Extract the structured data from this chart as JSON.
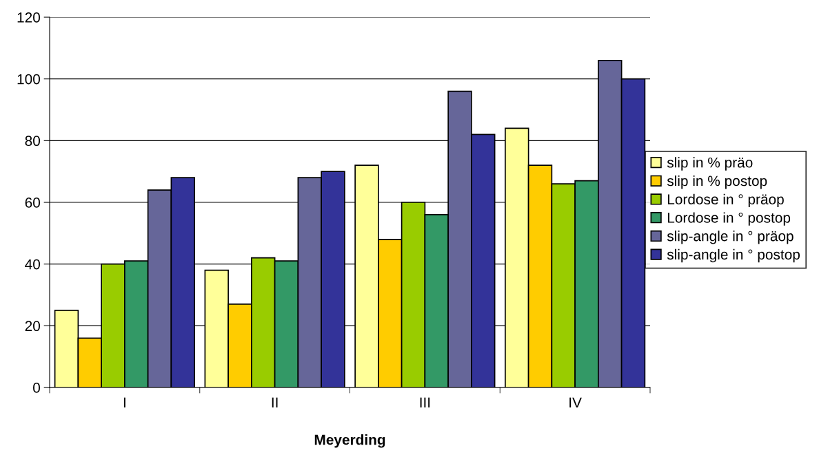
{
  "chart_data": {
    "type": "bar",
    "xlabel": "Meyerding",
    "categories": [
      "I",
      "II",
      "III",
      "IV"
    ],
    "series": [
      {
        "name": "slip in % präo",
        "color": "#ffff99",
        "values": [
          25,
          38,
          72,
          84
        ]
      },
      {
        "name": "slip in % postop",
        "color": "#ffcc00",
        "values": [
          16,
          27,
          48,
          72
        ]
      },
      {
        "name": "Lordose in ° präop",
        "color": "#99cc00",
        "values": [
          40,
          42,
          60,
          66
        ]
      },
      {
        "name": "Lordose in ° postop",
        "color": "#339966",
        "values": [
          41,
          41,
          56,
          67
        ]
      },
      {
        "name": "slip-angle in ° präop",
        "color": "#666699",
        "values": [
          64,
          68,
          96,
          106
        ]
      },
      {
        "name": "slip-angle in ° postop",
        "color": "#333399",
        "values": [
          68,
          70,
          82,
          100
        ]
      }
    ],
    "ylim": [
      0,
      120
    ],
    "yticks": [
      0,
      20,
      40,
      60,
      80,
      100,
      120
    ],
    "grid": "y",
    "legend": "right"
  }
}
